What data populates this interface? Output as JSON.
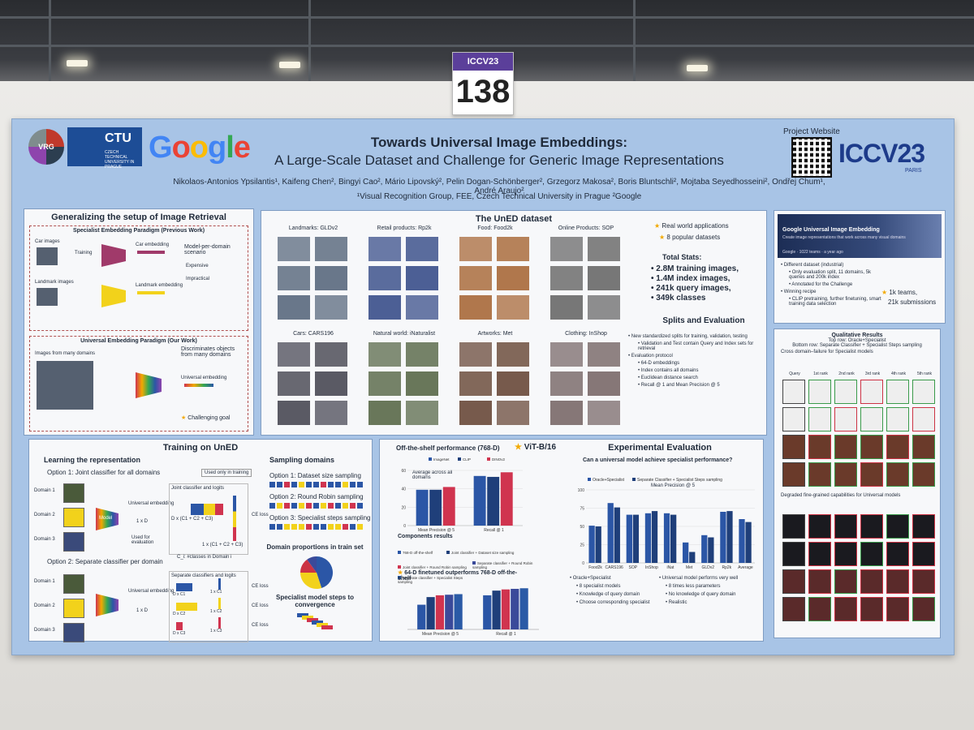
{
  "booth": {
    "conference_label": "ICCV23",
    "number": "138"
  },
  "header": {
    "title_line1": "Towards Universal Image Embeddings:",
    "title_line2": "A Large-Scale Dataset and Challenge for Generic Image Representations",
    "authors": "Nikolaos-Antonios Ypsilantis¹, Kaifeng Chen², Bingyi Cao², Mário Lipovský², Pelin Dogan-Schönberger², Grzegorz Makosa², Boris Bluntschli², Mojtaba Seyedhosseini², Ondřej Chum¹, André Araujo²",
    "affiliations": "¹Visual Recognition Group, FEE, Czech Technical University in Prague  ²Google",
    "project_website": "Project Website",
    "iccv_logo": "ICCV23",
    "iccv_city": "PARIS",
    "logo_ctu": "CTU",
    "logo_ctu_sub": "CZECH TECHNICAL UNIVERSITY IN PRAGUE",
    "logo_google": "Google",
    "logo_vrg": "VRG"
  },
  "generalizing": {
    "title": "Generalizing the setup of Image Retrieval",
    "specialist_title": "Specialist Embedding Paradigm (Previous Work)",
    "car_images": "Car images",
    "landmark_images": "Landmark images",
    "training": "Training",
    "model": "Model",
    "car_embedding": "Car embedding",
    "landmark_embedding": "Landmark embedding",
    "model_per_domain": "Model-per-domain scenario",
    "expensive": "Expensive",
    "impractical": "Impractical",
    "universal_title": "Universal Embedding Paradigm (Our Work)",
    "images_many": "Images from many domains",
    "universal_embedding": "Universal embedding",
    "discriminates": "Discriminates objects from many domains",
    "challenging": "Challenging goal"
  },
  "uned": {
    "title": "The UnED dataset",
    "categories": [
      "Landmarks: GLDv2",
      "Retail products: Rp2k",
      "Food: Food2k",
      "Online Products: SOP",
      "Cars: CARS196",
      "Natural world: iNaturalist",
      "Artworks: Met",
      "Clothing: InShop"
    ],
    "real_world": "Real world applications",
    "popular": "8 popular datasets",
    "total_stats": "Total Stats:",
    "stats": [
      "2.8M training images,",
      "1.4M index images,",
      "241k query images,",
      "349k classes"
    ],
    "splits_title": "Splits and Evaluation",
    "splits": [
      "New standardized splits for training, validation, testing",
      "Validation and Test contain Query and Index sets for retrieval",
      "Evaluation protocol",
      "64-D embeddings",
      "Index contains all domains",
      "Euclidean distance search",
      "Recall @ 1 and Mean Precision @ 5"
    ]
  },
  "kaggle": {
    "banner_title": "Google Universal Image Embedding",
    "banner_sub": "Create image representations that work across many visual domains",
    "banner_meta": "Google · 1022 teams · a year ago",
    "items": [
      "Different dataset (industrial)",
      "Only evaluation split, 11 domains, 5k queries and 200k index",
      "Annotated for the Challenge",
      "Winning recipe",
      "CLIP pretraining, further finetuning, smart training data selection"
    ],
    "teams": "1k teams,",
    "submissions": "21k submissions"
  },
  "qualitative": {
    "title": "Qualitative Results",
    "top_row": "Top row: Oracle+Specialist",
    "bottom_row": "Bottom row: Separate Classifier + Specialist Steps sampling",
    "cross_domain": "Cross domain–failure for Specialist models",
    "degraded": "Degraded fine-grained capabilities for Universal models",
    "columns": [
      "Query",
      "1st rank",
      "2nd rank",
      "3rd rank",
      "4th rank",
      "5th rank"
    ]
  },
  "training": {
    "title": "Training on UnED",
    "learning": "Learning the representation",
    "opt1": "Option 1: Joint classifier for all domains",
    "used_only": "Used only in training",
    "joint": "Joint classifier and logits",
    "domains": [
      "Domain 1",
      "Domain 2",
      "Domain 3"
    ],
    "universal_embedding": "Universal embedding",
    "one_d": "1 x D",
    "d_sum": "D x (C1 + C2 + C3)",
    "one_sum": "1 x (C1 + C2 + C3)",
    "ce_loss": "CE loss",
    "used_eval": "Used for evaluation",
    "ci_note": "C_i: #classes in Domain i",
    "opt2": "Option 2: Separate classifier per domain",
    "separate": "Separate classifiers and logits",
    "dc": [
      "D x C1",
      "D x C2",
      "D x C3"
    ],
    "oc": [
      "1 x C1",
      "1 x C2",
      "1 x C3"
    ],
    "model": "Model",
    "sampling_title": "Sampling domains",
    "s1": "Option 1: Dataset size sampling",
    "s2": "Option 2: Round Robin sampling",
    "s3": "Option 3: Specialist steps sampling",
    "proportions": "Domain proportions in train set",
    "specialist_steps": "Specialist model steps to convergence"
  },
  "experiments": {
    "offshelf_title": "Off-the-shelf performance (768-D)",
    "vit": "ViT-B/16",
    "avg_label": "Average across all domains",
    "legend_offshelf": [
      "ImageNet",
      "CLIP",
      "DINOv2"
    ],
    "components": "Components results",
    "legend_components": [
      "768-D off-the-shelf",
      "Joint classifier + Dataset size sampling",
      "Joint classifier + Round Robin sampling",
      "Separate classifier + Round Robin sampling",
      "Separate classifier + Specialist Steps sampling"
    ],
    "finetuned": "64-D finetuned outperforms 768-D off-the-shelf",
    "x_mp5": "Mean Precision @ 5",
    "x_r1": "Recall @ 1",
    "eval_title": "Experimental Evaluation",
    "question": "Can a universal model achieve specialist performance?",
    "legend_eval": [
      "Oracle+Specialist",
      "Separate Classifier + Specialist Steps sampling"
    ],
    "mp5_title": "Mean Precision @ 5",
    "bullets_left": [
      "Oracle+Specialist",
      "8 specialist models",
      "Knowledge of query domain",
      "Choose corresponding specialist"
    ],
    "bullets_right": [
      "Universal model performs very well",
      "8 times less parameters",
      "No knowledge of query domain",
      "Realistic"
    ]
  },
  "chart_data": [
    {
      "type": "bar",
      "title": "Mean Precision @ 5",
      "categories": [
        "Food2k",
        "CARS196",
        "SOP",
        "InShop",
        "iNat",
        "Met",
        "GLDv2",
        "Rp2k",
        "Average"
      ],
      "series": [
        {
          "name": "Oracle+Specialist",
          "values": [
            51,
            82,
            66,
            68,
            68,
            28,
            38,
            70,
            60
          ]
        },
        {
          "name": "Separate Classifier + Specialist Steps sampling",
          "values": [
            50,
            76,
            66,
            71,
            66,
            15,
            35,
            71,
            56
          ]
        }
      ],
      "ylim": [
        0,
        100
      ],
      "yticks": [
        "0",
        "25",
        "50",
        "75",
        "100"
      ]
    },
    {
      "type": "bar",
      "title": "Off-the-shelf performance (768-D)",
      "categories": [
        "Mean Precision @ 5",
        "Recall @ 1"
      ],
      "series": [
        {
          "name": "ImageNet",
          "values": [
            39,
            54
          ]
        },
        {
          "name": "CLIP",
          "values": [
            39,
            53
          ]
        },
        {
          "name": "DINOv2",
          "values": [
            42,
            58
          ]
        }
      ],
      "ylim": [
        0,
        60
      ],
      "yticks": [
        "0",
        "20",
        "40",
        "60"
      ]
    },
    {
      "type": "bar",
      "title": "Components results",
      "categories": [
        "Mean Precision @ 5",
        "Recall @ 1"
      ],
      "series": [
        {
          "name": "768-D off-the-shelf",
          "values": [
            42,
            58
          ]
        },
        {
          "name": "Joint classifier + Dataset size sampling",
          "values": [
            55,
            66
          ]
        },
        {
          "name": "Joint classifier + Round Robin sampling",
          "values": [
            58,
            68
          ]
        },
        {
          "name": "Separate classifier + Round Robin sampling",
          "values": [
            59,
            69
          ]
        },
        {
          "name": "Separate classifier + Specialist Steps sampling",
          "values": [
            60,
            70
          ]
        }
      ],
      "ylim": [
        0,
        80
      ]
    },
    {
      "type": "pie",
      "title": "Domain proportions in train set",
      "values": [
        0.45,
        0.3,
        0.15,
        0.1
      ],
      "colors": [
        "#2b56a6",
        "#f2d21b",
        "#cc3344",
        "#3a4a9a"
      ]
    }
  ],
  "colors": {
    "accent_blue": "#2b56a6",
    "accent_yellow": "#f2d21b",
    "accent_red": "#d0344f",
    "panel_border": "#7f9cc2"
  }
}
